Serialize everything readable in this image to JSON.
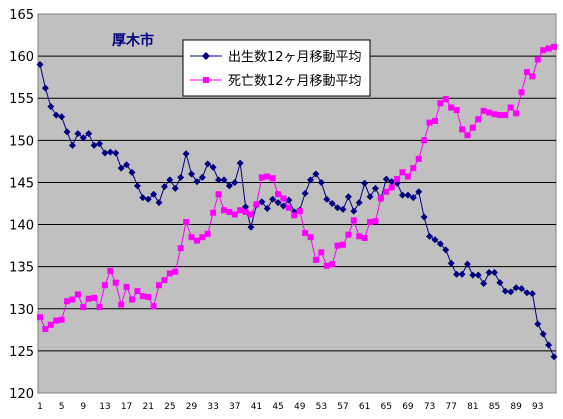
{
  "chart_data": {
    "type": "line",
    "title": "厚木市",
    "xlabel": "",
    "ylabel": "",
    "ylim": [
      120,
      165
    ],
    "y_ticks": [
      "120",
      "125",
      "130",
      "135",
      "140",
      "145",
      "150",
      "155",
      "160",
      "165"
    ],
    "xlim": [
      1,
      96
    ],
    "x_ticks": [
      "1",
      "5",
      "9",
      "13",
      "17",
      "21",
      "25",
      "29",
      "33",
      "37",
      "41",
      "45",
      "49",
      "53",
      "57",
      "61",
      "65",
      "69",
      "73",
      "77",
      "81",
      "85",
      "89",
      "93"
    ],
    "x": [
      1,
      2,
      3,
      4,
      5,
      6,
      7,
      8,
      9,
      10,
      11,
      12,
      13,
      14,
      15,
      16,
      17,
      18,
      19,
      20,
      21,
      22,
      23,
      24,
      25,
      26,
      27,
      28,
      29,
      30,
      31,
      32,
      33,
      34,
      35,
      36,
      37,
      38,
      39,
      40,
      41,
      42,
      43,
      44,
      45,
      46,
      47,
      48,
      49,
      50,
      51,
      52,
      53,
      54,
      55,
      56,
      57,
      58,
      59,
      60,
      61,
      62,
      63,
      64,
      65,
      66,
      67,
      68,
      69,
      70,
      71,
      72,
      73,
      74,
      75,
      76,
      77,
      78,
      79,
      80,
      81,
      82,
      83,
      84,
      85,
      86,
      87,
      88,
      89,
      90,
      91,
      92,
      93,
      94,
      95,
      96
    ],
    "grid": "horizontal",
    "plot_background": "#c0c0c0",
    "legend_placement": "top-center",
    "series": [
      {
        "name": "出生数12ヶ月移動平均",
        "color": "#000080",
        "marker": "diamond",
        "values": [
          159.0,
          156.2,
          154.0,
          153.0,
          152.8,
          151.0,
          149.4,
          150.8,
          150.3,
          150.8,
          149.4,
          149.6,
          148.5,
          148.6,
          148.5,
          146.7,
          147.1,
          146.2,
          144.6,
          143.2,
          143.0,
          143.6,
          142.6,
          144.5,
          145.3,
          144.3,
          145.6,
          148.4,
          146.0,
          145.1,
          145.6,
          147.2,
          146.8,
          145.3,
          145.3,
          144.6,
          145.0,
          147.3,
          142.1,
          139.7,
          142.3,
          142.7,
          141.9,
          143.0,
          142.6,
          142.2,
          142.9,
          141.5,
          141.7,
          143.7,
          145.3,
          146.0,
          145.0,
          143.0,
          142.5,
          142.0,
          141.8,
          143.3,
          141.6,
          142.6,
          144.9,
          143.3,
          144.3,
          143.1,
          145.4,
          145.1,
          144.9,
          143.5,
          143.5,
          143.2,
          143.9,
          140.9,
          138.6,
          138.2,
          137.7,
          137.0,
          135.4,
          134.1,
          134.1,
          135.3,
          134.0,
          134.0,
          133.0,
          134.3,
          134.3,
          133.1,
          132.1,
          132.0,
          132.5,
          132.4,
          131.9,
          131.8,
          128.2,
          127.0,
          125.7,
          124.3
        ]
      },
      {
        "name": "死亡数12ヶ月移動平均",
        "color": "#ff00ff",
        "marker": "square",
        "values": [
          129.0,
          127.6,
          128.1,
          128.6,
          128.7,
          130.9,
          131.1,
          131.7,
          130.2,
          131.2,
          131.3,
          130.2,
          132.8,
          134.5,
          133.1,
          130.5,
          132.6,
          131.1,
          132.1,
          131.5,
          131.4,
          130.3,
          132.8,
          133.4,
          134.2,
          134.4,
          137.2,
          140.3,
          138.5,
          138.1,
          138.5,
          138.9,
          141.4,
          143.6,
          141.7,
          141.5,
          141.2,
          141.7,
          141.5,
          141.2,
          142.4,
          145.6,
          145.7,
          145.5,
          143.6,
          143.1,
          142.0,
          141.1,
          141.6,
          139.0,
          138.5,
          135.8,
          136.7,
          135.1,
          135.3,
          137.5,
          137.6,
          138.8,
          140.5,
          138.6,
          138.4,
          140.3,
          140.4,
          143.1,
          143.9,
          144.4,
          145.4,
          146.2,
          145.7,
          146.7,
          147.8,
          150.0,
          152.1,
          152.3,
          154.4,
          154.9,
          153.9,
          153.6,
          151.3,
          150.6,
          151.5,
          152.5,
          153.5,
          153.3,
          153.1,
          153.0,
          153.0,
          153.9,
          153.2,
          155.7,
          158.1,
          157.6,
          159.6,
          160.7,
          160.9,
          161.1
        ]
      }
    ]
  }
}
